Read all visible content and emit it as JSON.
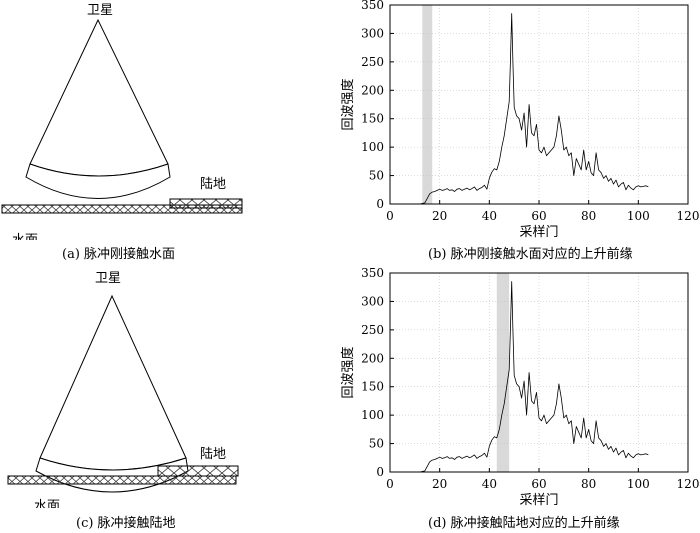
{
  "figure": {
    "panels": [
      {
        "id": "a",
        "caption": "(a) 脉冲刚接触水面",
        "satellite_label": "卫星",
        "land_label": "陆地",
        "water_label": "水面"
      },
      {
        "id": "b",
        "caption": "(b) 脉冲刚接触水面对应的上升前缘",
        "chart_index": 0
      },
      {
        "id": "c",
        "caption": "(c) 脉冲接触陆地",
        "satellite_label": "卫星",
        "land_label": "陆地",
        "water_label": "水面"
      },
      {
        "id": "d",
        "caption": "(d) 脉冲接触陆地对应的上升前缘",
        "chart_index": 1
      }
    ]
  },
  "chart_data": [
    {
      "type": "line",
      "title": "",
      "xlabel": "采样门",
      "ylabel": "回波强度",
      "xlim": [
        0,
        120
      ],
      "ylim": [
        0,
        350
      ],
      "xticks": [
        0,
        20,
        40,
        60,
        80,
        100,
        120
      ],
      "yticks": [
        0,
        50,
        100,
        150,
        200,
        250,
        300,
        350
      ],
      "grid": true,
      "highlight_band": [
        13,
        17
      ],
      "series": [
        {
          "x": [
            0,
            2,
            4,
            6,
            8,
            10,
            12,
            14,
            15,
            16,
            17,
            18,
            19,
            20,
            21,
            22,
            23,
            24,
            25,
            26,
            27,
            28,
            29,
            30,
            31,
            32,
            33,
            34,
            35,
            36,
            37,
            38,
            39,
            40,
            41,
            42,
            43,
            44,
            45,
            46,
            47,
            48,
            48.5,
            49,
            49.5,
            50,
            51,
            52,
            53,
            54,
            55,
            56,
            57,
            58,
            59,
            60,
            61,
            62,
            63,
            64,
            65,
            66,
            67,
            68,
            69,
            70,
            71,
            72,
            73,
            74,
            75,
            76,
            77,
            78,
            79,
            80,
            81,
            82,
            83,
            84,
            85,
            86,
            87,
            88,
            89,
            90,
            91,
            92,
            93,
            94,
            95,
            96,
            97,
            98,
            99,
            100,
            101,
            102,
            103,
            104
          ],
          "y": [
            0,
            0,
            0,
            0,
            0,
            0,
            0,
            2,
            10,
            18,
            21,
            22,
            24,
            26,
            24,
            25,
            27,
            24,
            25,
            22,
            26,
            27,
            24,
            26,
            28,
            25,
            27,
            30,
            24,
            27,
            29,
            33,
            26,
            45,
            56,
            62,
            60,
            75,
            100,
            120,
            150,
            180,
            250,
            335,
            250,
            170,
            155,
            150,
            130,
            160,
            100,
            175,
            125,
            120,
            140,
            95,
            90,
            100,
            85,
            90,
            95,
            100,
            120,
            155,
            130,
            95,
            100,
            85,
            90,
            50,
            80,
            70,
            60,
            95,
            60,
            75,
            55,
            50,
            90,
            60,
            55,
            45,
            50,
            40,
            45,
            35,
            42,
            30,
            35,
            38,
            25,
            33,
            28,
            25,
            30,
            32,
            30,
            31,
            32,
            30
          ]
        }
      ]
    },
    {
      "type": "line",
      "title": "",
      "xlabel": "采样门",
      "ylabel": "回波强度",
      "xlim": [
        0,
        120
      ],
      "ylim": [
        0,
        350
      ],
      "xticks": [
        0,
        20,
        40,
        60,
        80,
        100,
        120
      ],
      "yticks": [
        0,
        50,
        100,
        150,
        200,
        250,
        300,
        350
      ],
      "grid": true,
      "highlight_band": [
        43,
        48
      ],
      "series": [
        {
          "x": [
            0,
            2,
            4,
            6,
            8,
            10,
            12,
            14,
            15,
            16,
            17,
            18,
            19,
            20,
            21,
            22,
            23,
            24,
            25,
            26,
            27,
            28,
            29,
            30,
            31,
            32,
            33,
            34,
            35,
            36,
            37,
            38,
            39,
            40,
            41,
            42,
            43,
            44,
            45,
            46,
            47,
            48,
            48.5,
            49,
            49.5,
            50,
            51,
            52,
            53,
            54,
            55,
            56,
            57,
            58,
            59,
            60,
            61,
            62,
            63,
            64,
            65,
            66,
            67,
            68,
            69,
            70,
            71,
            72,
            73,
            74,
            75,
            76,
            77,
            78,
            79,
            80,
            81,
            82,
            83,
            84,
            85,
            86,
            87,
            88,
            89,
            90,
            91,
            92,
            93,
            94,
            95,
            96,
            97,
            98,
            99,
            100,
            101,
            102,
            103,
            104
          ],
          "y": [
            0,
            0,
            0,
            0,
            0,
            0,
            0,
            2,
            10,
            18,
            21,
            22,
            24,
            26,
            24,
            25,
            27,
            24,
            25,
            22,
            26,
            27,
            24,
            26,
            28,
            25,
            27,
            30,
            24,
            27,
            29,
            33,
            26,
            45,
            56,
            62,
            60,
            75,
            100,
            120,
            150,
            180,
            250,
            335,
            250,
            170,
            155,
            150,
            130,
            160,
            100,
            175,
            125,
            120,
            140,
            95,
            90,
            100,
            85,
            90,
            95,
            100,
            120,
            155,
            130,
            95,
            100,
            85,
            90,
            50,
            80,
            70,
            60,
            95,
            60,
            75,
            55,
            50,
            90,
            60,
            55,
            45,
            50,
            40,
            45,
            35,
            42,
            30,
            35,
            38,
            25,
            33,
            28,
            25,
            30,
            32,
            30,
            31,
            32,
            30
          ]
        }
      ]
    }
  ]
}
